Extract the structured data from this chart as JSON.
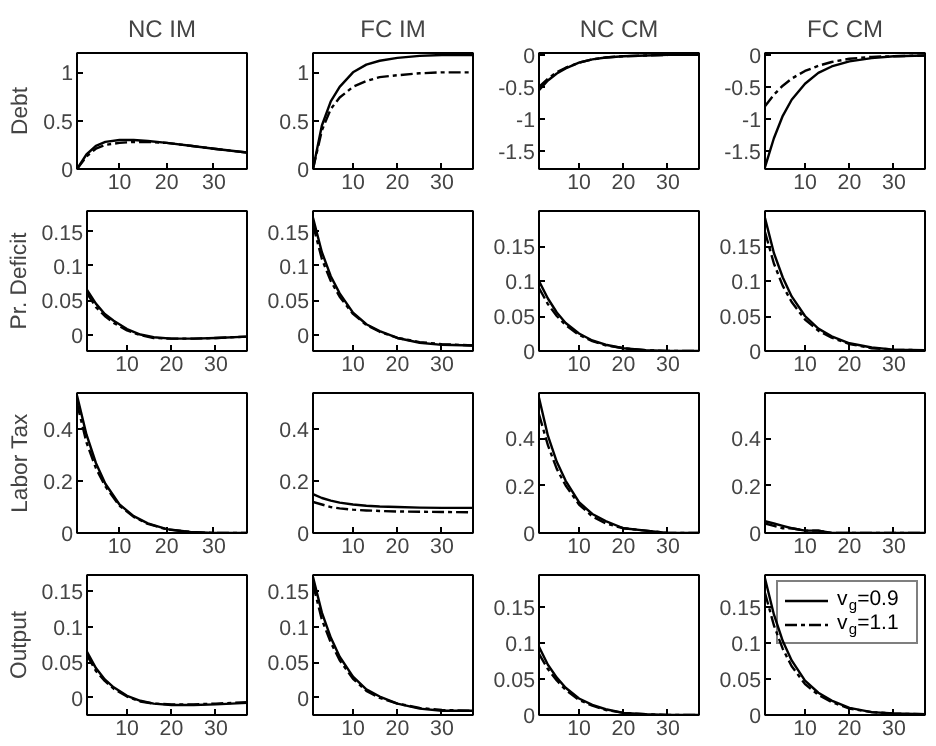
{
  "chart_data": [
    {
      "type": "line",
      "title": "NC IM",
      "ylabel": "Debt",
      "x": [
        1,
        3,
        5,
        7,
        10,
        13,
        16,
        20,
        25,
        30,
        37
      ],
      "xlim": [
        1,
        37
      ],
      "ylim": [
        0,
        1.2
      ],
      "xticks": [
        10,
        20,
        30
      ],
      "yticks": [
        0,
        0.5,
        1
      ],
      "grid": false,
      "legend": false,
      "series": [
        {
          "color": "#000000",
          "line_style": "solid",
          "values": [
            0,
            0.15,
            0.24,
            0.28,
            0.3,
            0.3,
            0.29,
            0.27,
            0.24,
            0.21,
            0.17
          ]
        },
        {
          "color": "#000000",
          "line_style": "dashed",
          "values": [
            0,
            0.13,
            0.21,
            0.25,
            0.27,
            0.28,
            0.28,
            0.27,
            0.24,
            0.21,
            0.17
          ]
        }
      ]
    },
    {
      "type": "line",
      "title": "FC IM",
      "x": [
        1,
        3,
        5,
        7,
        10,
        13,
        16,
        20,
        25,
        30,
        37
      ],
      "xlim": [
        1,
        37
      ],
      "ylim": [
        0,
        1.2
      ],
      "xticks": [
        10,
        20,
        30
      ],
      "yticks": [
        0,
        0.5,
        1
      ],
      "grid": false,
      "legend": false,
      "series": [
        {
          "color": "#000000",
          "line_style": "solid",
          "values": [
            0,
            0.45,
            0.7,
            0.85,
            1.0,
            1.08,
            1.12,
            1.15,
            1.17,
            1.18,
            1.18
          ]
        },
        {
          "color": "#000000",
          "line_style": "dashed",
          "values": [
            0,
            0.4,
            0.62,
            0.74,
            0.85,
            0.91,
            0.95,
            0.97,
            0.99,
            1.0,
            1.0
          ]
        }
      ]
    },
    {
      "type": "line",
      "title": "NC CM",
      "x": [
        1,
        3,
        5,
        7,
        10,
        13,
        16,
        20,
        25,
        30,
        37
      ],
      "xlim": [
        1,
        37
      ],
      "ylim": [
        -1.78,
        0.03
      ],
      "xticks": [
        10,
        20,
        30
      ],
      "yticks": [
        -1.5,
        -1,
        -0.5,
        0
      ],
      "grid": false,
      "legend": false,
      "series": [
        {
          "color": "#000000",
          "line_style": "solid",
          "values": [
            -0.55,
            -0.4,
            -0.29,
            -0.21,
            -0.12,
            -0.07,
            -0.04,
            -0.02,
            -0.01,
            0,
            0
          ]
        },
        {
          "color": "#000000",
          "line_style": "dashed",
          "values": [
            -0.5,
            -0.37,
            -0.27,
            -0.2,
            -0.12,
            -0.07,
            -0.04,
            -0.02,
            -0.01,
            0,
            0
          ]
        }
      ]
    },
    {
      "type": "line",
      "title": "FC CM",
      "x": [
        1,
        3,
        5,
        7,
        10,
        13,
        16,
        20,
        25,
        30,
        37
      ],
      "xlim": [
        1,
        37
      ],
      "ylim": [
        -1.78,
        0.03
      ],
      "xticks": [
        10,
        20,
        30
      ],
      "yticks": [
        -1.5,
        -1,
        -0.5,
        0
      ],
      "grid": false,
      "legend": false,
      "series": [
        {
          "color": "#000000",
          "line_style": "solid",
          "values": [
            -1.75,
            -1.3,
            -0.95,
            -0.7,
            -0.45,
            -0.28,
            -0.18,
            -0.1,
            -0.05,
            -0.02,
            -0.01
          ]
        },
        {
          "color": "#000000",
          "line_style": "dashed",
          "values": [
            -0.8,
            -0.62,
            -0.48,
            -0.37,
            -0.25,
            -0.17,
            -0.11,
            -0.06,
            -0.03,
            -0.02,
            -0.01
          ]
        }
      ]
    },
    {
      "type": "line",
      "ylabel": "Pr. Deficit",
      "x": [
        1,
        3,
        5,
        7,
        10,
        13,
        16,
        20,
        25,
        30,
        37
      ],
      "xlim": [
        1,
        37
      ],
      "ylim": [
        -0.024,
        0.18
      ],
      "xticks": [
        10,
        20,
        30
      ],
      "yticks": [
        0,
        0.05,
        0.1,
        0.15
      ],
      "grid": false,
      "legend": false,
      "series": [
        {
          "color": "#000000",
          "line_style": "solid",
          "values": [
            0.065,
            0.045,
            0.03,
            0.02,
            0.008,
            0.0,
            -0.004,
            -0.006,
            -0.006,
            -0.005,
            -0.003
          ]
        },
        {
          "color": "#000000",
          "line_style": "dashed",
          "values": [
            0.06,
            0.04,
            0.027,
            0.017,
            0.006,
            -0.001,
            -0.005,
            -0.006,
            -0.006,
            -0.005,
            -0.003
          ]
        }
      ]
    },
    {
      "type": "line",
      "x": [
        1,
        3,
        5,
        7,
        10,
        13,
        16,
        20,
        25,
        30,
        37
      ],
      "xlim": [
        1,
        37
      ],
      "ylim": [
        -0.024,
        0.18
      ],
      "xticks": [
        10,
        20,
        30
      ],
      "yticks": [
        0,
        0.05,
        0.1,
        0.15
      ],
      "grid": false,
      "legend": false,
      "series": [
        {
          "color": "#000000",
          "line_style": "solid",
          "values": [
            0.17,
            0.12,
            0.085,
            0.06,
            0.032,
            0.015,
            0.005,
            -0.005,
            -0.012,
            -0.015,
            -0.016
          ]
        },
        {
          "color": "#000000",
          "line_style": "dashed",
          "values": [
            0.16,
            0.11,
            0.078,
            0.055,
            0.03,
            0.014,
            0.004,
            -0.005,
            -0.011,
            -0.014,
            -0.016
          ]
        }
      ]
    },
    {
      "type": "line",
      "x": [
        1,
        3,
        5,
        7,
        10,
        13,
        16,
        20,
        25,
        30,
        37
      ],
      "xlim": [
        1,
        37
      ],
      "ylim": [
        0,
        0.2
      ],
      "xticks": [
        10,
        20,
        30
      ],
      "yticks": [
        0,
        0.05,
        0.1,
        0.15
      ],
      "grid": false,
      "legend": false,
      "series": [
        {
          "color": "#000000",
          "line_style": "solid",
          "values": [
            0.1,
            0.075,
            0.055,
            0.04,
            0.025,
            0.015,
            0.009,
            0.004,
            0.001,
            0,
            0
          ]
        },
        {
          "color": "#000000",
          "line_style": "dashed",
          "values": [
            0.09,
            0.067,
            0.05,
            0.037,
            0.023,
            0.014,
            0.008,
            0.004,
            0.001,
            0,
            0
          ]
        }
      ]
    },
    {
      "type": "line",
      "x": [
        1,
        3,
        5,
        7,
        10,
        13,
        16,
        20,
        25,
        30,
        37
      ],
      "xlim": [
        1,
        37
      ],
      "ylim": [
        0,
        0.2
      ],
      "xticks": [
        10,
        20,
        30
      ],
      "yticks": [
        0,
        0.05,
        0.1,
        0.15
      ],
      "grid": false,
      "legend": false,
      "series": [
        {
          "color": "#000000",
          "line_style": "solid",
          "values": [
            0.19,
            0.14,
            0.105,
            0.078,
            0.05,
            0.032,
            0.021,
            0.011,
            0.005,
            0.002,
            0.001
          ]
        },
        {
          "color": "#000000",
          "line_style": "dashed",
          "values": [
            0.17,
            0.125,
            0.093,
            0.07,
            0.045,
            0.029,
            0.019,
            0.01,
            0.004,
            0.002,
            0.001
          ]
        }
      ]
    },
    {
      "type": "line",
      "ylabel": "Labor Tax",
      "x": [
        1,
        3,
        5,
        7,
        10,
        13,
        16,
        20,
        25,
        30,
        37
      ],
      "xlim": [
        1,
        37
      ],
      "ylim": [
        0,
        0.54
      ],
      "xticks": [
        10,
        20,
        30
      ],
      "yticks": [
        0,
        0.2,
        0.4
      ],
      "grid": false,
      "legend": false,
      "series": [
        {
          "color": "#000000",
          "line_style": "solid",
          "values": [
            0.53,
            0.38,
            0.27,
            0.19,
            0.11,
            0.065,
            0.037,
            0.015,
            0.004,
            0,
            0
          ]
        },
        {
          "color": "#000000",
          "line_style": "dashed",
          "values": [
            0.5,
            0.35,
            0.25,
            0.18,
            0.105,
            0.062,
            0.035,
            0.014,
            0.004,
            0,
            0
          ]
        }
      ]
    },
    {
      "type": "line",
      "x": [
        1,
        3,
        5,
        7,
        10,
        13,
        16,
        20,
        25,
        30,
        37
      ],
      "xlim": [
        1,
        37
      ],
      "ylim": [
        0,
        0.54
      ],
      "xticks": [
        10,
        20,
        30
      ],
      "yticks": [
        0,
        0.2,
        0.4
      ],
      "grid": false,
      "legend": false,
      "series": [
        {
          "color": "#000000",
          "line_style": "solid",
          "values": [
            0.15,
            0.135,
            0.125,
            0.117,
            0.11,
            0.105,
            0.102,
            0.1,
            0.098,
            0.097,
            0.097
          ]
        },
        {
          "color": "#000000",
          "line_style": "dashed",
          "values": [
            0.12,
            0.11,
            0.1,
            0.095,
            0.09,
            0.087,
            0.085,
            0.083,
            0.082,
            0.081,
            0.08
          ]
        }
      ]
    },
    {
      "type": "line",
      "x": [
        1,
        3,
        5,
        7,
        10,
        13,
        16,
        20,
        25,
        30,
        37
      ],
      "xlim": [
        1,
        37
      ],
      "ylim": [
        0,
        0.59
      ],
      "xticks": [
        10,
        20,
        30
      ],
      "yticks": [
        0,
        0.2,
        0.4
      ],
      "grid": false,
      "legend": false,
      "series": [
        {
          "color": "#000000",
          "line_style": "solid",
          "values": [
            0.57,
            0.41,
            0.3,
            0.22,
            0.13,
            0.08,
            0.05,
            0.02,
            0.01,
            0,
            0
          ]
        },
        {
          "color": "#000000",
          "line_style": "dashed",
          "values": [
            0.5,
            0.37,
            0.27,
            0.2,
            0.12,
            0.07,
            0.04,
            0.02,
            0.01,
            0,
            0
          ]
        }
      ]
    },
    {
      "type": "line",
      "x": [
        1,
        3,
        5,
        7,
        10,
        13,
        16,
        20,
        25,
        30,
        37
      ],
      "xlim": [
        1,
        37
      ],
      "ylim": [
        0,
        0.59
      ],
      "xticks": [
        10,
        20,
        30
      ],
      "yticks": [
        0,
        0.2,
        0.4
      ],
      "grid": false,
      "legend": false,
      "series": [
        {
          "color": "#000000",
          "line_style": "solid",
          "values": [
            0.05,
            0.04,
            0.03,
            0.02,
            0.01,
            0.01,
            0,
            0,
            0,
            0,
            0
          ]
        },
        {
          "color": "#000000",
          "line_style": "dashed",
          "values": [
            0.04,
            0.03,
            0.02,
            0.02,
            0.01,
            0.01,
            0,
            0,
            0,
            0,
            0
          ]
        }
      ]
    },
    {
      "type": "line",
      "ylabel": "Output",
      "x": [
        1,
        3,
        5,
        7,
        10,
        13,
        16,
        20,
        25,
        30,
        37
      ],
      "xlim": [
        1,
        37
      ],
      "ylim": [
        -0.024,
        0.173
      ],
      "xticks": [
        10,
        20,
        30
      ],
      "yticks": [
        0,
        0.05,
        0.1,
        0.15
      ],
      "grid": false,
      "legend": false,
      "series": [
        {
          "color": "#000000",
          "line_style": "solid",
          "values": [
            0.065,
            0.042,
            0.026,
            0.015,
            0.003,
            -0.004,
            -0.008,
            -0.01,
            -0.01,
            -0.009,
            -0.007
          ]
        },
        {
          "color": "#000000",
          "line_style": "dashed",
          "values": [
            0.06,
            0.038,
            0.024,
            0.013,
            0.002,
            -0.005,
            -0.008,
            -0.009,
            -0.009,
            -0.008,
            -0.006
          ]
        }
      ]
    },
    {
      "type": "line",
      "x": [
        1,
        3,
        5,
        7,
        10,
        13,
        16,
        20,
        25,
        30,
        37
      ],
      "xlim": [
        1,
        37
      ],
      "ylim": [
        -0.024,
        0.173
      ],
      "xticks": [
        10,
        20,
        30
      ],
      "yticks": [
        0,
        0.05,
        0.1,
        0.15
      ],
      "grid": false,
      "legend": false,
      "series": [
        {
          "color": "#000000",
          "line_style": "solid",
          "values": [
            0.17,
            0.12,
            0.085,
            0.058,
            0.03,
            0.012,
            0.002,
            -0.008,
            -0.015,
            -0.018,
            -0.018
          ]
        },
        {
          "color": "#000000",
          "line_style": "dashed",
          "values": [
            0.16,
            0.11,
            0.078,
            0.053,
            0.027,
            0.01,
            0.0,
            -0.008,
            -0.014,
            -0.017,
            -0.018
          ]
        }
      ]
    },
    {
      "type": "line",
      "x": [
        1,
        3,
        5,
        7,
        10,
        13,
        16,
        20,
        25,
        30,
        37
      ],
      "xlim": [
        1,
        37
      ],
      "ylim": [
        0,
        0.195
      ],
      "xticks": [
        10,
        20,
        30
      ],
      "yticks": [
        0,
        0.05,
        0.1,
        0.15
      ],
      "grid": false,
      "legend": false,
      "series": [
        {
          "color": "#000000",
          "line_style": "solid",
          "values": [
            0.095,
            0.07,
            0.052,
            0.038,
            0.023,
            0.014,
            0.008,
            0.003,
            0.001,
            0,
            0
          ]
        },
        {
          "color": "#000000",
          "line_style": "dashed",
          "values": [
            0.085,
            0.064,
            0.048,
            0.035,
            0.021,
            0.013,
            0.007,
            0.003,
            0.001,
            0,
            0
          ]
        }
      ]
    },
    {
      "type": "line",
      "x": [
        1,
        3,
        5,
        7,
        10,
        13,
        16,
        20,
        25,
        30,
        37
      ],
      "xlim": [
        1,
        37
      ],
      "ylim": [
        0,
        0.195
      ],
      "xticks": [
        10,
        20,
        30
      ],
      "yticks": [
        0,
        0.05,
        0.1,
        0.15
      ],
      "grid": false,
      "legend": "top right",
      "series": [
        {
          "name": "v$_{g}$=0.9",
          "color": "#000000",
          "line_style": "solid",
          "values": [
            0.19,
            0.14,
            0.103,
            0.076,
            0.048,
            0.031,
            0.02,
            0.01,
            0.004,
            0.002,
            0.001
          ]
        },
        {
          "name": "v$_{g}$=1.1",
          "color": "#000000",
          "line_style": "dashed",
          "values": [
            0.17,
            0.125,
            0.092,
            0.068,
            0.043,
            0.028,
            0.018,
            0.009,
            0.004,
            0.002,
            0.001
          ]
        }
      ]
    }
  ]
}
